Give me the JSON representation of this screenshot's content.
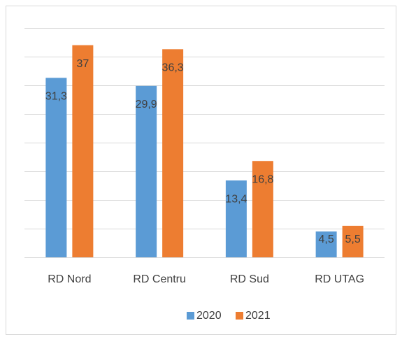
{
  "chart_data": {
    "type": "bar",
    "categories": [
      "RD Nord",
      "RD Centru",
      "RD Sud",
      "RD UTAG"
    ],
    "series": [
      {
        "name": "2020",
        "color": "#5b9bd5",
        "values": [
          31.3,
          29.9,
          13.4,
          4.5
        ],
        "value_labels": [
          "31,3",
          "29,9",
          "13,4",
          "4,5"
        ]
      },
      {
        "name": "2021",
        "color": "#ed7d31",
        "values": [
          37,
          36.3,
          16.8,
          5.5
        ],
        "value_labels": [
          "37",
          "36,3",
          "16,8",
          "5,5"
        ]
      }
    ],
    "ylim": [
      0,
      40
    ],
    "yticks": [
      0,
      5,
      10,
      15,
      20,
      25,
      30,
      35,
      40
    ],
    "grid": true,
    "legend": "bottom"
  }
}
